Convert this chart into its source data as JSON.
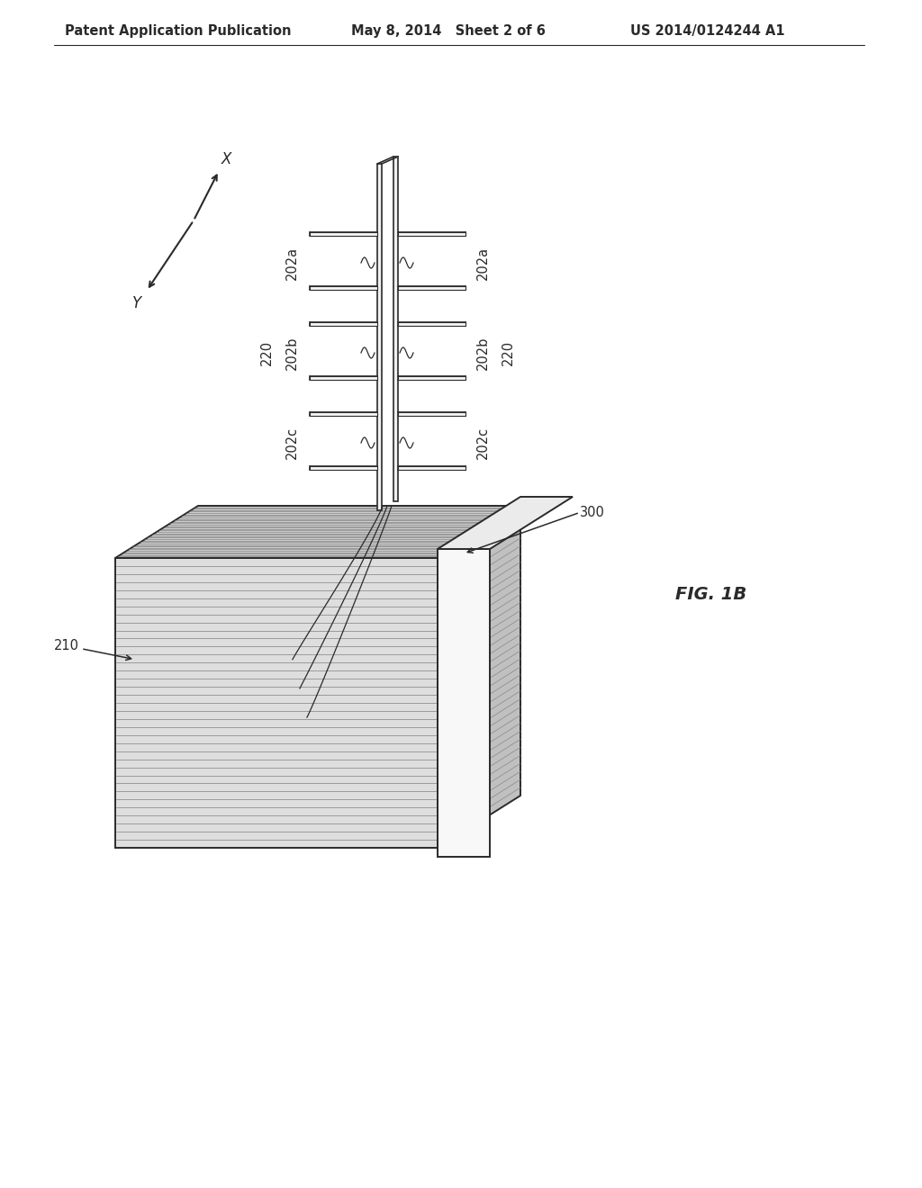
{
  "bg_color": "#ffffff",
  "lc": "#2a2a2a",
  "header_left": "Patent Application Publication",
  "header_mid": "May 8, 2014   Sheet 2 of 6",
  "header_right": "US 2014/0124244 A1",
  "fig_label": "FIG. 1B",
  "label_202a": "202a",
  "label_202b": "202b",
  "label_202c": "202c",
  "label_220": "220",
  "label_210": "210",
  "label_300": "300",
  "label_X": "X",
  "label_Y": "Y",
  "n_layers": 36
}
